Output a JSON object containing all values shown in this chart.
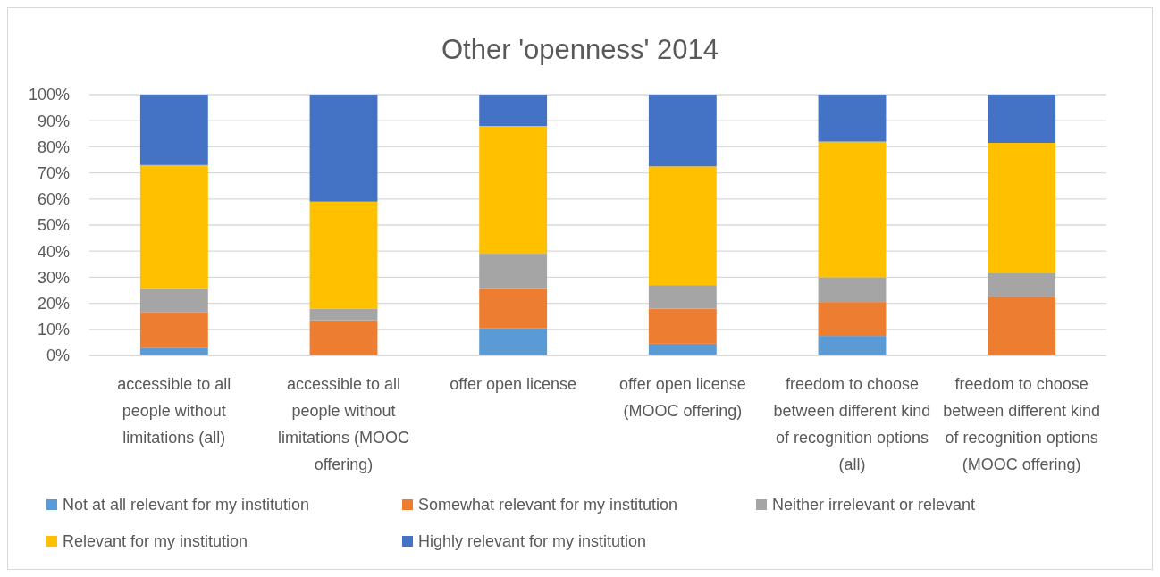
{
  "chart_data": {
    "type": "bar",
    "title": "Other 'openness' 2014",
    "stacked": true,
    "categories": [
      "accessible to all people without limitations (all)",
      "accessible to all people without limitations (MOOC offering)",
      "offer open license",
      "offer open license (MOOC offering)",
      "freedom to choose between different kind of recognition options (all)",
      "freedom to choose between different kind of recognition options (MOOC offering)"
    ],
    "series": [
      {
        "name": "Not at all relevant for my institution",
        "color": "#5b9bd5",
        "values": [
          3,
          0,
          10.5,
          4.5,
          7.5,
          0
        ]
      },
      {
        "name": "Somewhat relevant for my institution",
        "color": "#ed7d31",
        "values": [
          13.5,
          13.5,
          15,
          13.5,
          13,
          22.5
        ]
      },
      {
        "name": "Neither irrelevant or relevant",
        "color": "#a5a5a5",
        "values": [
          9,
          4.5,
          13.5,
          9,
          9.5,
          9
        ]
      },
      {
        "name": "Relevant for my institution",
        "color": "#ffc000",
        "values": [
          47.5,
          41,
          49,
          45.5,
          52,
          50
        ]
      },
      {
        "name": "Highly relevant for my institution",
        "color": "#4472c4",
        "values": [
          27,
          41,
          12,
          27.5,
          18,
          18.5
        ]
      }
    ],
    "ylim": [
      0,
      100
    ],
    "yticks": [
      {
        "value": 0,
        "label": "0%"
      },
      {
        "value": 10,
        "label": "10%"
      },
      {
        "value": 20,
        "label": "20%"
      },
      {
        "value": 30,
        "label": "30%"
      },
      {
        "value": 40,
        "label": "40%"
      },
      {
        "value": 50,
        "label": "50%"
      },
      {
        "value": 60,
        "label": "60%"
      },
      {
        "value": 70,
        "label": "70%"
      },
      {
        "value": 80,
        "label": "80%"
      },
      {
        "value": 90,
        "label": "90%"
      },
      {
        "value": 100,
        "label": "100%"
      }
    ],
    "grid": "y",
    "legend": "bottom"
  }
}
